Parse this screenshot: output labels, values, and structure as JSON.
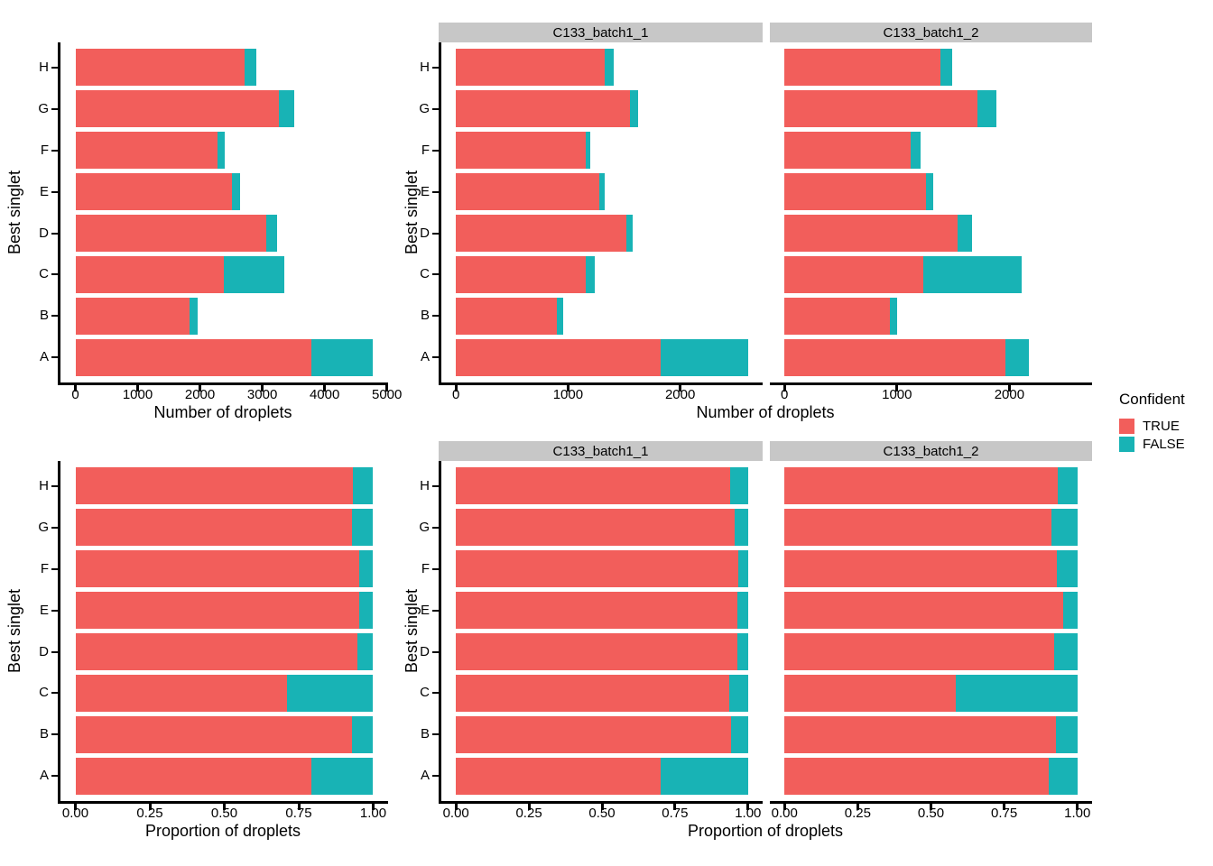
{
  "figure": {
    "legend": {
      "title": "Confident",
      "items": [
        {
          "label": "TRUE",
          "color": "#F25E5B"
        },
        {
          "label": "FALSE",
          "color": "#18B3B5"
        }
      ]
    },
    "colors": {
      "true_fill": "#F25E5B",
      "false_fill": "#18B3B5",
      "strip_bg": "#C7C7C7",
      "axis": "#000000"
    },
    "facet_labels": [
      "C133_batch1_1",
      "C133_batch1_2"
    ]
  },
  "chart_data": [
    {
      "id": "counts-all-samples",
      "type": "bar",
      "orientation": "horizontal",
      "stacked": true,
      "ylabel": "Best singlet",
      "xlabel": "Number of droplets",
      "categories": [
        "H",
        "G",
        "F",
        "E",
        "D",
        "C",
        "B",
        "A"
      ],
      "xticks": [
        0,
        1000,
        2000,
        3000,
        4000,
        5000
      ],
      "xtick_labels": [
        "0",
        "1000",
        "2000",
        "3000",
        "4000",
        "5000"
      ],
      "xmax": 4780,
      "series": [
        {
          "name": "TRUE",
          "values": [
            2710,
            3260,
            2280,
            2520,
            3060,
            2385,
            1835,
            3790
          ]
        },
        {
          "name": "FALSE",
          "values": [
            200,
            255,
            115,
            120,
            175,
            970,
            135,
            990
          ]
        }
      ]
    },
    {
      "id": "counts-by-sample",
      "type": "bar",
      "orientation": "horizontal",
      "stacked": true,
      "ylabel": "Best singlet",
      "xlabel": "Number of droplets",
      "categories": [
        "H",
        "G",
        "F",
        "E",
        "D",
        "C",
        "B",
        "A"
      ],
      "xticks": [
        0,
        1000,
        2000
      ],
      "xtick_labels": [
        "0",
        "1000",
        "2000"
      ],
      "xmax": 2605,
      "facets": [
        {
          "label": "C133_batch1_1",
          "series": [
            {
              "name": "TRUE",
              "values": [
                1325,
                1550,
                1155,
                1275,
                1520,
                1160,
                900,
                1825
              ]
            },
            {
              "name": "FALSE",
              "values": [
                85,
                75,
                40,
                50,
                60,
                80,
                55,
                780
              ]
            }
          ]
        },
        {
          "label": "C133_batch1_2",
          "series": [
            {
              "name": "TRUE",
              "values": [
                1390,
                1715,
                1125,
                1255,
                1540,
                1235,
                935,
                1965
              ]
            },
            {
              "name": "FALSE",
              "values": [
                100,
                170,
                85,
                65,
                130,
                875,
                70,
                210
              ]
            }
          ]
        }
      ]
    },
    {
      "id": "proportion-all-samples",
      "type": "bar",
      "orientation": "horizontal",
      "stacked": true,
      "ylabel": "Best singlet",
      "xlabel": "Proportion of droplets",
      "categories": [
        "H",
        "G",
        "F",
        "E",
        "D",
        "C",
        "B",
        "A"
      ],
      "xticks": [
        0,
        0.25,
        0.5,
        0.75,
        1.0
      ],
      "xtick_labels": [
        "0.00",
        "0.25",
        "0.50",
        "0.75",
        "1.00"
      ],
      "xmax": 1.0,
      "series": [
        {
          "name": "TRUE",
          "values": [
            0.931,
            0.928,
            0.952,
            0.954,
            0.946,
            0.71,
            0.929,
            0.792
          ]
        },
        {
          "name": "FALSE",
          "values": [
            0.069,
            0.072,
            0.048,
            0.046,
            0.054,
            0.29,
            0.071,
            0.208
          ]
        }
      ]
    },
    {
      "id": "proportion-by-sample",
      "type": "bar",
      "orientation": "horizontal",
      "stacked": true,
      "ylabel": "Best singlet",
      "xlabel": "Proportion of droplets",
      "categories": [
        "H",
        "G",
        "F",
        "E",
        "D",
        "C",
        "B",
        "A"
      ],
      "xticks": [
        0,
        0.25,
        0.5,
        0.75,
        1.0
      ],
      "xtick_labels": [
        "0.00",
        "0.25",
        "0.50",
        "0.75",
        "1.00"
      ],
      "xmax": 1.0,
      "facets": [
        {
          "label": "C133_batch1_1",
          "series": [
            {
              "name": "TRUE",
              "values": [
                0.94,
                0.954,
                0.966,
                0.963,
                0.962,
                0.935,
                0.942,
                0.7
              ]
            },
            {
              "name": "FALSE",
              "values": [
                0.06,
                0.046,
                0.034,
                0.037,
                0.038,
                0.065,
                0.058,
                0.3
              ]
            }
          ]
        },
        {
          "label": "C133_batch1_2",
          "series": [
            {
              "name": "TRUE",
              "values": [
                0.933,
                0.91,
                0.93,
                0.951,
                0.922,
                0.585,
                0.928,
                0.903
              ]
            },
            {
              "name": "FALSE",
              "values": [
                0.067,
                0.09,
                0.07,
                0.049,
                0.078,
                0.415,
                0.072,
                0.097
              ]
            }
          ]
        }
      ]
    }
  ]
}
